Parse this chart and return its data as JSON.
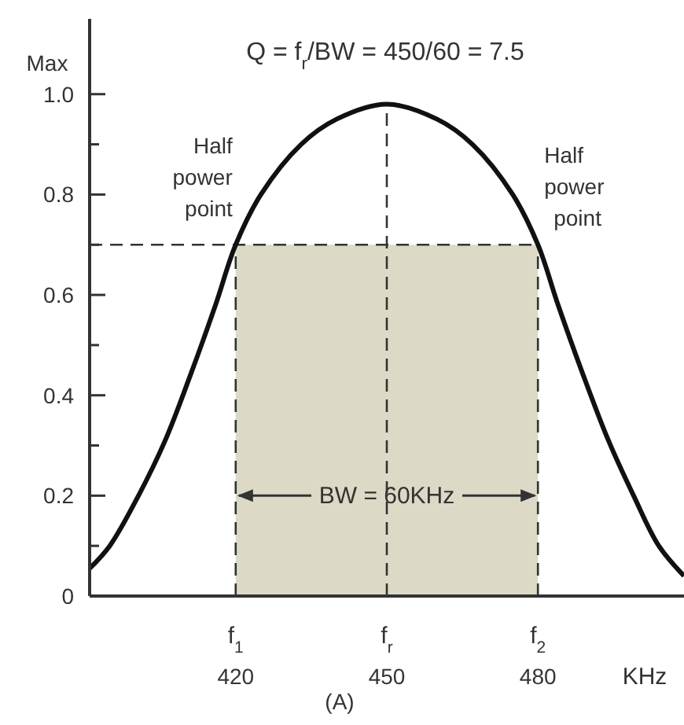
{
  "chart_data": {
    "type": "line",
    "title": "Q = f$_{r}$/BW = 450/60 = 7.5",
    "ylabel": "Max",
    "xlabel": "KHz",
    "x": [
      391,
      395,
      400.7,
      406,
      411,
      416,
      420,
      425,
      433,
      440,
      450,
      460,
      467,
      475,
      480,
      484,
      489,
      494,
      499,
      504,
      509
    ],
    "series": [
      {
        "color": "#111111",
        "values": [
          0.055,
          0.1,
          0.2,
          0.31,
          0.44,
          0.58,
          0.7,
          0.8,
          0.9,
          0.95,
          0.98,
          0.95,
          0.9,
          0.8,
          0.7,
          0.58,
          0.44,
          0.31,
          0.2,
          0.1,
          0.04
        ]
      }
    ],
    "xlim": [
      391,
      509
    ],
    "ylim": [
      0,
      1.15
    ],
    "xticks": [
      420,
      450,
      480
    ],
    "yticks": [
      0,
      {
        "value": 0.1,
        "label": null
      },
      0.2,
      {
        "value": 0.3,
        "label": null
      },
      0.4,
      {
        "value": 0.5,
        "label": null
      },
      0.6,
      {
        "value": 0.7,
        "label": null
      },
      0.8,
      {
        "value": 0.9,
        "label": null
      },
      {
        "value": 1,
        "label": "1.0"
      }
    ],
    "ref_lines": [
      {
        "axis": "y",
        "value": 0.7,
        "label": null,
        "line_style": "dashed"
      },
      {
        "axis": "x",
        "value": 420,
        "label": "f$_{1}$",
        "line_style": "dashed"
      },
      {
        "axis": "x",
        "value": 450,
        "label": "f$_{r}$",
        "line_style": "dashed"
      },
      {
        "axis": "x",
        "value": 480,
        "label": "f$_{2}$",
        "line_style": "dashed"
      }
    ],
    "bands": [
      {
        "axis": "x",
        "from": 420,
        "to": 480,
        "label": "BW = 60KHz",
        "color": "#dcd9c6"
      }
    ],
    "annotations": [
      {
        "text": "Half power point",
        "x": 420,
        "y": 0.7
      },
      {
        "text": "Half power point",
        "x": 480,
        "y": 0.7
      },
      "(A)"
    ],
    "line_style": "solid"
  }
}
